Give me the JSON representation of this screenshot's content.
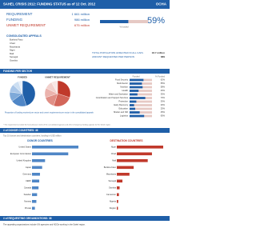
{
  "header": {
    "title": "SAHEL CRISIS 2012: FUNDING STATUS as of 12 Oct. 2012",
    "logo": "OCHA"
  },
  "summary": {
    "rows": [
      {
        "label": "REQUIREMENT",
        "value": "1 661 million"
      },
      {
        "label": "FUNDING",
        "value": "986 million"
      },
      {
        "label": "UNMET REQUIREMENT",
        "value": "675 million"
      }
    ],
    "percent": 59,
    "percent_label": "59%",
    "caption": "% funded"
  },
  "appeals": {
    "title": "CONSOLIDATED APPEALS",
    "items": [
      "Burkina Faso",
      "Chad",
      "Mauritania",
      "Niger",
      "Mali",
      "Senegal",
      "Gambia"
    ]
  },
  "population": {
    "label": "TOTAL POPULATION AFFECTED IN ALL CAPs",
    "label2": "AMOUNT REQUESTED PER PERSON",
    "value": "18.7 million",
    "value2": "$89"
  },
  "sectors": {
    "title": "FUNDING PER SECTOR",
    "pie1_title": "FUNDED",
    "pie2_title": "UNMET REQUIREMENT",
    "pie1": [
      45,
      20,
      12,
      10,
      8,
      5
    ],
    "pie2": [
      30,
      25,
      15,
      12,
      10,
      8
    ],
    "pie_note": "Proportion of funding received per sector and unmet requirements per sector in the consolidated appeals",
    "head1": "Funded",
    "head2": "% Funded",
    "rows": [
      {
        "name": "Food Security",
        "value": 62,
        "label": "62%"
      },
      {
        "name": "Multi-Sector",
        "value": 55,
        "label": "55%"
      },
      {
        "name": "Nutrition",
        "value": 58,
        "label": "58%"
      },
      {
        "name": "Health",
        "value": 40,
        "label": "40%"
      },
      {
        "name": "Water and Sanitation",
        "value": 35,
        "label": "35%"
      },
      {
        "name": "Coordination and Support Services",
        "value": 70,
        "label": "70%"
      },
      {
        "name": "Protection",
        "value": 30,
        "label": "30%"
      },
      {
        "name": "Early Recovery",
        "value": 20,
        "label": "20%"
      },
      {
        "name": "Education",
        "value": 25,
        "label": "25%"
      },
      {
        "name": "Shelter and NFI",
        "value": 45,
        "label": "45%"
      },
      {
        "name": "Logistics",
        "value": 65,
        "label": "65%"
      }
    ]
  },
  "note": "* The requirements include the humanitarian needs of the consolidated appeals and other emergency funding appeals for the Sahel region.",
  "donors": {
    "title": "# of DONOR COUNTRIES: 46",
    "subtitle": "Top 10 donors and destination countries, funding in US$ million",
    "left_title": "DONOR COUNTRIES",
    "right_title": "DESTINATION COUNTRIES",
    "left": [
      {
        "name": "United States",
        "value": 320
      },
      {
        "name": "European Commission",
        "value": 250
      },
      {
        "name": "United Kingdom",
        "value": 90
      },
      {
        "name": "Japan",
        "value": 70
      },
      {
        "name": "Germany",
        "value": 55
      },
      {
        "name": "CERF",
        "value": 50
      },
      {
        "name": "Canada",
        "value": 45
      },
      {
        "name": "Sweden",
        "value": 35
      },
      {
        "name": "Norway",
        "value": 30
      },
      {
        "name": "Private",
        "value": 20
      }
    ],
    "right": [
      {
        "name": "Niger",
        "value": 330
      },
      {
        "name": "Chad",
        "value": 250
      },
      {
        "name": "Mali",
        "value": 220
      },
      {
        "name": "Burkina Faso",
        "value": 120
      },
      {
        "name": "Mauritania",
        "value": 90
      },
      {
        "name": "Senegal",
        "value": 40
      },
      {
        "name": "Gambia",
        "value": 20
      },
      {
        "name": "Cameroon",
        "value": 15
      },
      {
        "name": "Nigeria",
        "value": 10
      },
      {
        "name": "Region",
        "value": 8
      }
    ]
  },
  "orgs": {
    "title": "# of REQUESTING ORGANIZATIONS: 36",
    "text": "The appealing organizations include UN agencies and NGOs working in the Sahel region."
  }
}
